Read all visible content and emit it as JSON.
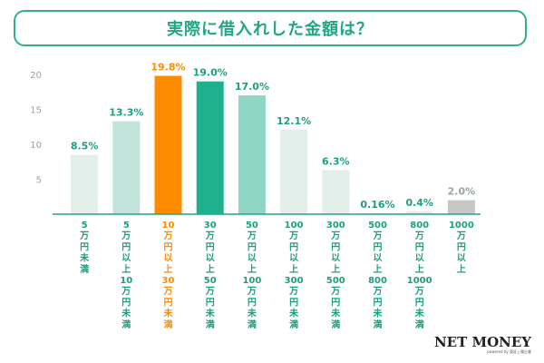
{
  "title": "実際に借入れした金額は？",
  "brand": {
    "name": "NET MONEY",
    "sub": "powered by 東証上場企業"
  },
  "colors": {
    "accent": "#2eb08f",
    "highlight": "#ff8c00",
    "axis": "#25a488",
    "light_bar": "#e3efeb",
    "label_teal": "#1f9e7f",
    "label_gray": "#9aa3a0"
  },
  "chart_data": {
    "type": "bar",
    "ylim": [
      0,
      20
    ],
    "yticks": [
      5,
      10,
      15,
      20
    ],
    "grid": false,
    "categories": [
      "5万円未満",
      "5万円以上10万円未満",
      "10万円以上30万円未満",
      "30万円以上50万円未満",
      "50万円以上100万円未満",
      "100万円以上300万円未満",
      "300万円以上500万円未満",
      "500万円以上800万円未満",
      "800万円以上1000万円未満",
      "1000万円以上"
    ],
    "values": [
      8.5,
      13.3,
      19.8,
      19.0,
      17.0,
      12.1,
      6.3,
      0.16,
      0.4,
      2.0
    ],
    "value_labels": [
      "8.5%",
      "13.3%",
      "19.8%",
      "19.0%",
      "17.0%",
      "12.1%",
      "6.3%",
      "0.16%",
      "0.4%",
      "2.0%"
    ],
    "bar_colors": [
      "#e2efea",
      "#c3e4da",
      "#ff8c00",
      "#1fb08d",
      "#8fd6c4",
      "#e2efea",
      "#e2efea",
      "#e2efea",
      "#e2efea",
      "#c4c8c7"
    ],
    "label_colors": [
      "#1f9e7f",
      "#1f9e7f",
      "#ff8c00",
      "#1f9e7f",
      "#1f9e7f",
      "#1f9e7f",
      "#1f9e7f",
      "#1f9e7f",
      "#1f9e7f",
      "#9aa3a0"
    ],
    "tick_label_colors": [
      "#1f9e7f",
      "#1f9e7f",
      "#ff8c00",
      "#1f9e7f",
      "#1f9e7f",
      "#1f9e7f",
      "#1f9e7f",
      "#1f9e7f",
      "#1f9e7f",
      "#1f9e7f"
    ]
  }
}
